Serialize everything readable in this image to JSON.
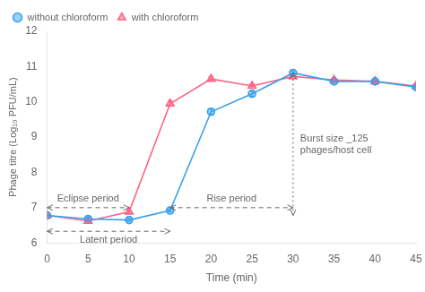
{
  "chart_data": {
    "type": "line",
    "xlabel": "Time (min)",
    "ylabel": "Phage titre (Log₁₀ PFU/mL)",
    "x": [
      0,
      5,
      10,
      15,
      20,
      25,
      30,
      35,
      40,
      45
    ],
    "series": [
      {
        "name": "without chloroform",
        "marker": "circle",
        "values": [
          6.78,
          6.68,
          6.65,
          6.92,
          9.72,
          10.23,
          10.82,
          10.58,
          10.58,
          10.42
        ],
        "yerr": [
          0.05,
          0.05,
          0.04,
          0.04,
          0.07,
          0.07,
          0.06,
          0.05,
          0.05,
          0.05
        ]
      },
      {
        "name": "with chloroform",
        "marker": "triangle",
        "values": [
          6.78,
          6.62,
          6.88,
          9.95,
          10.65,
          10.45,
          10.72,
          10.62,
          10.58,
          10.45
        ],
        "yerr": [
          0.05,
          0.05,
          0.05,
          0.07,
          0.06,
          0.06,
          0.05,
          0.05,
          0.05,
          0.05
        ]
      }
    ],
    "xlim": [
      0,
      45
    ],
    "xticks": [
      0,
      5,
      10,
      15,
      20,
      25,
      30,
      35,
      40,
      45
    ],
    "ylim": [
      6,
      12
    ],
    "yticks": [
      6,
      7,
      8,
      9,
      10,
      11,
      12
    ],
    "grid": false,
    "legend": "upper left",
    "annotations": [
      {
        "text": "Eclipse period",
        "x": [
          0,
          10
        ],
        "y": 7.0,
        "line_style": "dashed"
      },
      {
        "text": "Latent period",
        "x": [
          0,
          15
        ],
        "y": 6.33,
        "line_style": "dashed"
      },
      {
        "text": "Rise period",
        "x": [
          15,
          30
        ],
        "y": 7.0,
        "line_style": "dashed"
      },
      {
        "text": "Burst size _125\nphages/host cell",
        "x": 30,
        "y": [
          6.78,
          10.82
        ],
        "line_style": "dotted"
      }
    ]
  }
}
